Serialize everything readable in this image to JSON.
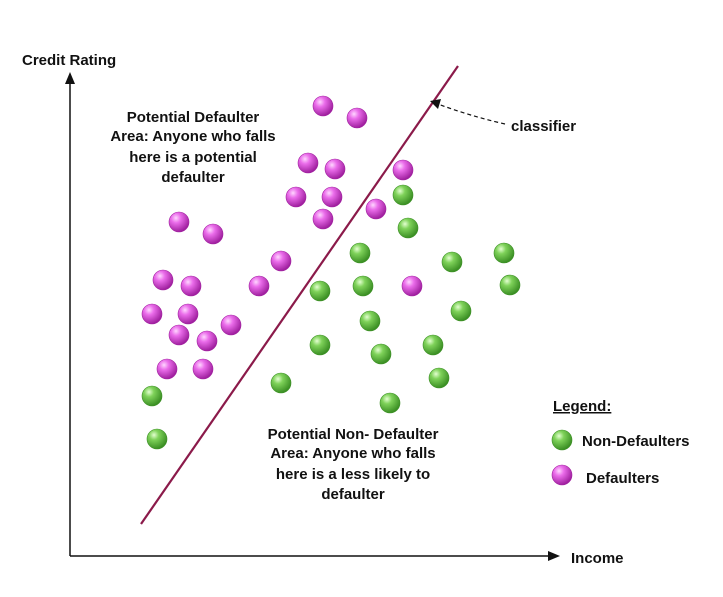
{
  "axes": {
    "y_label": "Credit Rating",
    "x_label": "Income"
  },
  "classifier": {
    "label": "classifier",
    "color": "#8b1a4a"
  },
  "regions": {
    "defaulter": [
      "Potential Defaulter",
      "Area: Anyone who falls",
      "here is a potential",
      "defaulter"
    ],
    "non_defaulter": [
      "Potential Non- Defaulter",
      "Area: Anyone who falls",
      "here is a less likely to",
      "defaulter"
    ]
  },
  "legend": {
    "title": "Legend:",
    "items": [
      {
        "label": "Non-Defaulters",
        "color": "#6cc04a"
      },
      {
        "label": "Defaulters",
        "color": "#d64fd6"
      }
    ]
  },
  "colors": {
    "defaulter": "#d64fd6",
    "non_defaulter": "#6cc04a",
    "axis": "#111111"
  }
}
